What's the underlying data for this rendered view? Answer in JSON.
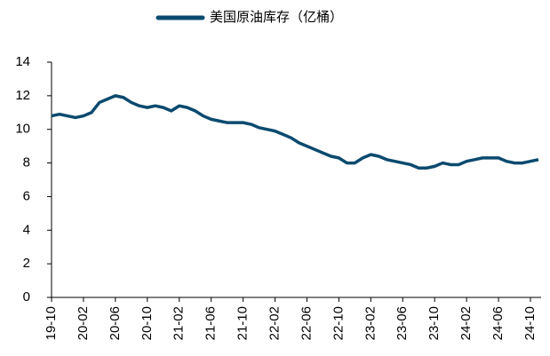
{
  "chart_data": {
    "type": "line",
    "categories": [
      "19-10",
      null,
      null,
      null,
      "20-02",
      null,
      null,
      null,
      "20-06",
      null,
      null,
      null,
      "20-10",
      null,
      null,
      null,
      "21-02",
      null,
      null,
      null,
      "21-06",
      null,
      null,
      null,
      "21-10",
      null,
      null,
      null,
      "22-02",
      null,
      null,
      null,
      "22-06",
      null,
      null,
      null,
      "22-10",
      null,
      null,
      null,
      "23-02",
      null,
      null,
      null,
      "23-06",
      null,
      null,
      null,
      "23-10",
      null,
      null,
      null,
      "24-02",
      null,
      null,
      null,
      "24-06",
      null,
      null,
      null,
      "24-10",
      null
    ],
    "series": [
      {
        "name": "美国原油库存（亿桶）",
        "color": "#0b4a6f",
        "values": [
          10.8,
          10.9,
          10.8,
          10.7,
          10.8,
          11.0,
          11.6,
          11.8,
          12.0,
          11.9,
          11.6,
          11.4,
          11.3,
          11.4,
          11.3,
          11.1,
          11.4,
          11.3,
          11.1,
          10.8,
          10.6,
          10.5,
          10.4,
          10.4,
          10.4,
          10.3,
          10.1,
          10.0,
          9.9,
          9.7,
          9.5,
          9.2,
          9.0,
          8.8,
          8.6,
          8.4,
          8.3,
          8.0,
          8.0,
          8.3,
          8.5,
          8.4,
          8.2,
          8.1,
          8.0,
          7.9,
          7.7,
          7.7,
          7.8,
          8.0,
          7.9,
          7.9,
          8.1,
          8.2,
          8.3,
          8.3,
          8.3,
          8.1,
          8.0,
          8.0,
          8.1,
          8.2
        ]
      }
    ],
    "ylim": [
      0,
      14
    ],
    "yticks": [
      0,
      2,
      4,
      6,
      8,
      10,
      12,
      14
    ],
    "grid": false,
    "legend": "top"
  }
}
